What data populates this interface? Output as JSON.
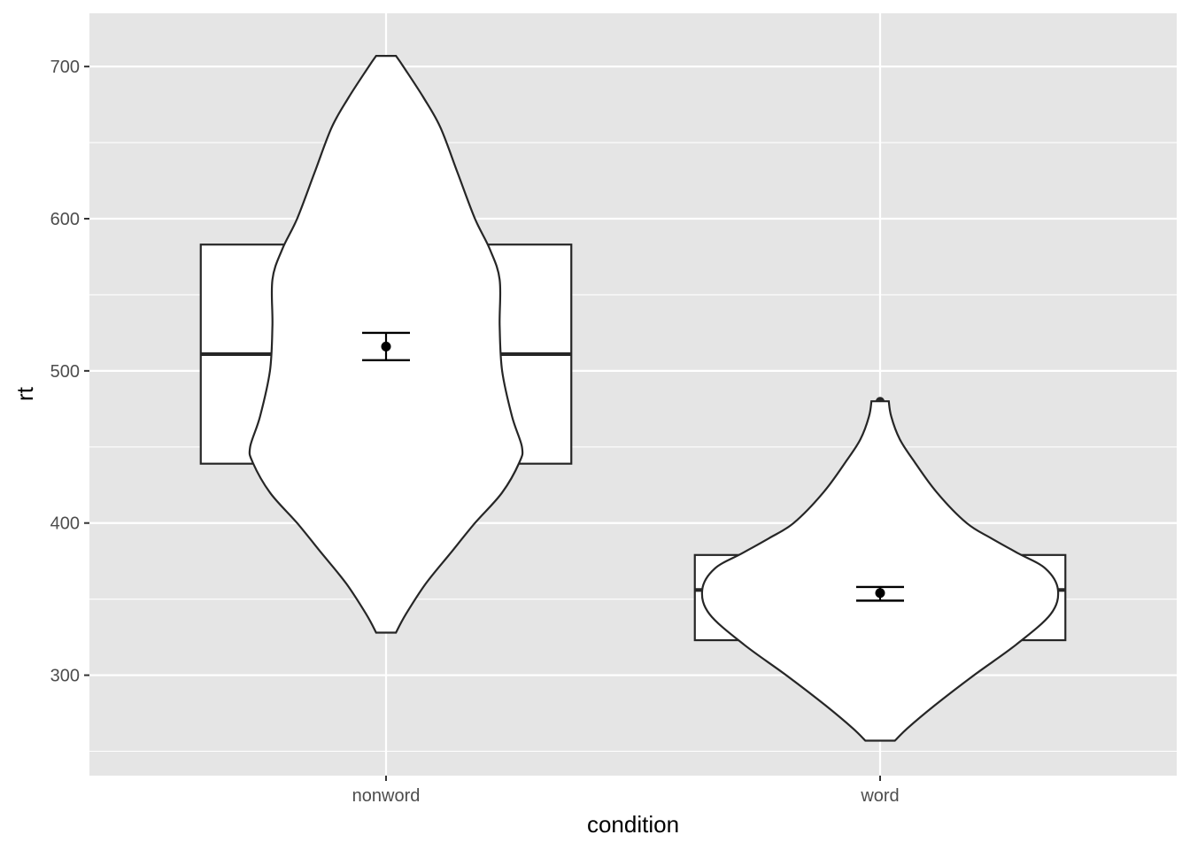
{
  "chart_data": {
    "type": "violin",
    "xlabel": "condition",
    "ylabel": "rt",
    "ylim": [
      234,
      735
    ],
    "y_ticks": [
      300,
      400,
      500,
      600,
      700
    ],
    "y_minor_ticks": [
      250,
      350,
      450,
      550,
      650
    ],
    "categories": [
      "nonword",
      "word"
    ],
    "grid": true,
    "colors": {
      "panel": "#e5e5e5",
      "grid": "#ffffff",
      "fill": "#ffffff",
      "stroke": "#262626",
      "point": "#000000"
    },
    "groups": [
      {
        "category": "nonword",
        "box": {
          "q1": 439,
          "median": 511,
          "q3": 583,
          "whisker_low": 439,
          "whisker_high": 583
        },
        "mean": 516,
        "ci": [
          507,
          525
        ],
        "violin": [
          [
            328,
            0.04
          ],
          [
            340,
            0.08
          ],
          [
            360,
            0.16
          ],
          [
            380,
            0.26
          ],
          [
            400,
            0.36
          ],
          [
            420,
            0.47
          ],
          [
            440,
            0.54
          ],
          [
            450,
            0.55
          ],
          [
            470,
            0.51
          ],
          [
            500,
            0.47
          ],
          [
            530,
            0.46
          ],
          [
            560,
            0.46
          ],
          [
            580,
            0.42
          ],
          [
            600,
            0.36
          ],
          [
            630,
            0.29
          ],
          [
            660,
            0.22
          ],
          [
            680,
            0.15
          ],
          [
            700,
            0.07
          ],
          [
            707,
            0.04
          ]
        ]
      },
      {
        "category": "word",
        "box": {
          "q1": 323,
          "median": 356,
          "q3": 379,
          "whisker_low": 323,
          "whisker_high": 379
        },
        "mean": 354,
        "ci": [
          349,
          358
        ],
        "outliers": [
          480
        ],
        "violin": [
          [
            257,
            0.06
          ],
          [
            265,
            0.11
          ],
          [
            280,
            0.22
          ],
          [
            300,
            0.38
          ],
          [
            320,
            0.55
          ],
          [
            340,
            0.69
          ],
          [
            356,
            0.72
          ],
          [
            370,
            0.67
          ],
          [
            380,
            0.56
          ],
          [
            390,
            0.45
          ],
          [
            400,
            0.35
          ],
          [
            420,
            0.23
          ],
          [
            440,
            0.14
          ],
          [
            455,
            0.08
          ],
          [
            470,
            0.045
          ],
          [
            480,
            0.035
          ]
        ]
      }
    ]
  }
}
